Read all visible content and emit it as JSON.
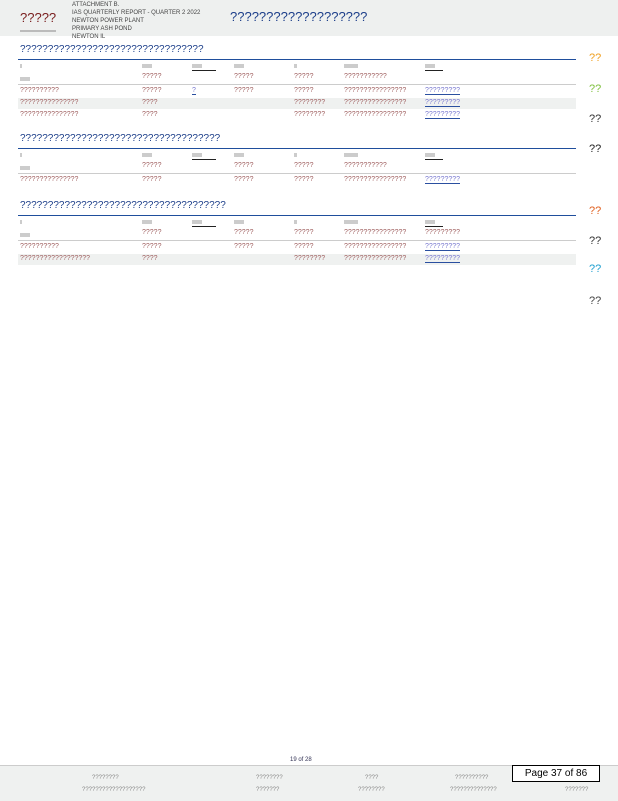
{
  "header": {
    "title": "?????",
    "attachment_lines": [
      "ATTACHMENT B.",
      "IAS QUARTERLY REPORT - QUARTER 2 2022",
      "NEWTON POWER PLANT",
      "PRIMARY ASH POND",
      "NEWTON IL"
    ],
    "right_title": "???????????????????"
  },
  "sections": [
    {
      "title": "?????????????????????????????????",
      "subheader": [
        "",
        "?????",
        "",
        "?????",
        "?????",
        "???????????",
        ""
      ],
      "rows": [
        [
          "??????????",
          "?????",
          "?",
          "?????",
          "?????",
          "????????????????",
          "?????????"
        ],
        [
          "???????????????",
          "????",
          "",
          "",
          "????????",
          "????????????????",
          "?????????"
        ],
        [
          "???????????????",
          "????",
          "",
          "",
          "????????",
          "????????????????",
          "?????????"
        ]
      ]
    },
    {
      "title": "????????????????????????????????????",
      "subheader": [
        "",
        "?????",
        "",
        "?????",
        "?????",
        "???????????",
        ""
      ],
      "rows": [
        [
          "???????????????",
          "?????",
          "",
          "?????",
          "?????",
          "????????????????",
          "?????????"
        ]
      ]
    },
    {
      "title": "?????????????????????????????????????",
      "subheader": [
        "",
        "?????",
        "",
        "?????",
        "?????",
        "????????????????",
        "?????????"
      ],
      "rows": [
        [
          "??????????",
          "?????",
          "",
          "?????",
          "?????",
          "????????????????",
          "?????????"
        ],
        [
          "??????????????????",
          "????",
          "",
          "",
          "????????",
          "????????????????",
          "?????????"
        ]
      ]
    }
  ],
  "markers": [
    {
      "t": "??",
      "color": "#f0a020"
    },
    {
      "t": "??",
      "color": "#80c040"
    },
    {
      "t": "??",
      "color": "#333333"
    },
    {
      "t": "??",
      "color": "#222222"
    },
    {
      "t": "??",
      "color": "#e06020"
    },
    {
      "t": "??",
      "color": "#333333"
    },
    {
      "t": "??",
      "color": "#20a0d0"
    },
    {
      "t": "??",
      "color": "#444444"
    }
  ],
  "footer": {
    "page_counter": "19 of 28",
    "page_label": "Page 37 of 86",
    "row1": [
      "????????",
      "????????",
      "????",
      "??????????"
    ],
    "row2": [
      "???????????????????",
      "???????",
      "????????",
      "??????????????",
      "???????"
    ]
  }
}
